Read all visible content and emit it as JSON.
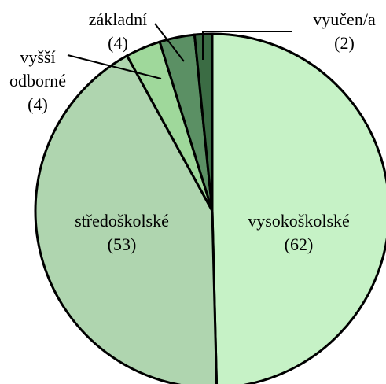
{
  "chart_data": {
    "type": "pie",
    "categories": [
      "vysokoškolské",
      "středoškolské",
      "vyšší odborné",
      "základní",
      "vyučen/a"
    ],
    "values": [
      62,
      53,
      4,
      4,
      2
    ],
    "value_labels": [
      "(62)",
      "(53)",
      "(4)",
      "(4)",
      "(2)"
    ],
    "colors": [
      "#c6f2c6",
      "#afd5af",
      "#9fd89b",
      "#5b9064",
      "#3b6c44"
    ]
  }
}
